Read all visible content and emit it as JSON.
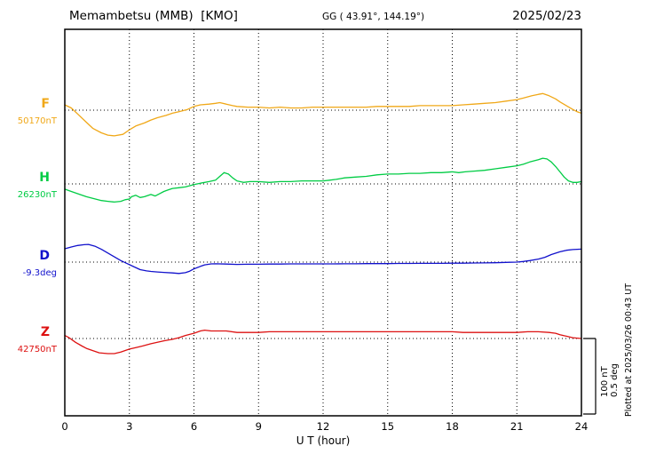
{
  "header": {
    "station": "Memambetsu (MMB)  [KMO]",
    "coords": "GG ( 43.91°, 144.19°)",
    "date": "2025/02/23"
  },
  "axis": {
    "xlabel": "U T (hour)",
    "ticks": [
      0,
      3,
      6,
      9,
      12,
      15,
      18,
      21,
      24
    ],
    "xmin": 0,
    "xmax": 24
  },
  "scale": {
    "line1": "100 nT",
    "line2": "0.5 deg",
    "plotted_at": "Plotted at 2025/03/26 00:43 UT"
  },
  "chart_data": {
    "type": "line",
    "title": "Memambetsu (MMB) [KMO] magnetogram 2025/02/23",
    "xlabel": "U T (hour)",
    "x_range": [
      0,
      24
    ],
    "grid": "dotted vertical every 3 hours; dotted horizontal at each component baseline",
    "scale_per_division": {
      "nT": 100,
      "deg": 0.5
    },
    "series": [
      {
        "name": "F",
        "unit": "nT",
        "baseline_value": 50170,
        "baseline_label": "50170nT",
        "color": "#f0a818",
        "points": [
          [
            0,
            7
          ],
          [
            0.3,
            3
          ],
          [
            0.6,
            -5
          ],
          [
            1,
            -16
          ],
          [
            1.3,
            -24
          ],
          [
            1.7,
            -30
          ],
          [
            2,
            -33
          ],
          [
            2.3,
            -34
          ],
          [
            2.7,
            -32
          ],
          [
            3,
            -26
          ],
          [
            3.3,
            -21
          ],
          [
            3.7,
            -17
          ],
          [
            4,
            -13
          ],
          [
            4.3,
            -10
          ],
          [
            4.7,
            -7
          ],
          [
            5,
            -4
          ],
          [
            5.3,
            -2
          ],
          [
            5.7,
            1
          ],
          [
            6,
            5
          ],
          [
            6.3,
            7
          ],
          [
            6.7,
            8
          ],
          [
            7,
            9
          ],
          [
            7.2,
            10
          ],
          [
            7.5,
            8
          ],
          [
            7.8,
            6
          ],
          [
            8,
            5
          ],
          [
            8.5,
            4
          ],
          [
            9,
            4
          ],
          [
            9.5,
            3
          ],
          [
            10,
            4
          ],
          [
            10.5,
            3
          ],
          [
            11,
            3
          ],
          [
            11.5,
            4
          ],
          [
            12,
            4
          ],
          [
            12.5,
            4
          ],
          [
            13,
            4
          ],
          [
            13.5,
            4
          ],
          [
            14,
            4
          ],
          [
            14.5,
            5
          ],
          [
            15,
            5
          ],
          [
            15.5,
            5
          ],
          [
            16,
            5
          ],
          [
            16.5,
            6
          ],
          [
            17,
            6
          ],
          [
            17.5,
            6
          ],
          [
            18,
            6
          ],
          [
            18.5,
            7
          ],
          [
            19,
            8
          ],
          [
            19.5,
            9
          ],
          [
            20,
            10
          ],
          [
            20.5,
            12
          ],
          [
            21,
            14
          ],
          [
            21.3,
            16
          ],
          [
            21.7,
            19
          ],
          [
            22,
            21
          ],
          [
            22.2,
            22
          ],
          [
            22.5,
            19
          ],
          [
            22.8,
            15
          ],
          [
            23,
            11
          ],
          [
            23.3,
            6
          ],
          [
            23.6,
            1
          ],
          [
            23.8,
            -2
          ],
          [
            24,
            -4
          ]
        ]
      },
      {
        "name": "H",
        "unit": "nT",
        "baseline_value": 26230,
        "baseline_label": "26230nT",
        "color": "#00cc44",
        "points": [
          [
            0,
            -7
          ],
          [
            0.3,
            -10
          ],
          [
            0.7,
            -14
          ],
          [
            1,
            -17
          ],
          [
            1.3,
            -19
          ],
          [
            1.7,
            -22
          ],
          [
            2,
            -23
          ],
          [
            2.3,
            -24
          ],
          [
            2.6,
            -23
          ],
          [
            2.8,
            -21
          ],
          [
            3,
            -20
          ],
          [
            3.1,
            -17
          ],
          [
            3.3,
            -15
          ],
          [
            3.5,
            -18
          ],
          [
            3.7,
            -17
          ],
          [
            4,
            -14
          ],
          [
            4.2,
            -16
          ],
          [
            4.4,
            -13
          ],
          [
            4.6,
            -10
          ],
          [
            4.8,
            -8
          ],
          [
            5,
            -6
          ],
          [
            5.3,
            -5
          ],
          [
            5.6,
            -4
          ],
          [
            6,
            -1
          ],
          [
            6.3,
            1
          ],
          [
            6.7,
            3
          ],
          [
            7,
            5
          ],
          [
            7.2,
            10
          ],
          [
            7.4,
            15
          ],
          [
            7.6,
            13
          ],
          [
            7.8,
            8
          ],
          [
            8,
            4
          ],
          [
            8.3,
            2
          ],
          [
            8.6,
            3
          ],
          [
            9,
            3
          ],
          [
            9.5,
            2
          ],
          [
            10,
            3
          ],
          [
            10.5,
            3
          ],
          [
            11,
            4
          ],
          [
            11.5,
            4
          ],
          [
            12,
            4
          ],
          [
            12.3,
            5
          ],
          [
            12.6,
            6
          ],
          [
            13,
            8
          ],
          [
            13.5,
            9
          ],
          [
            14,
            10
          ],
          [
            14.5,
            12
          ],
          [
            15,
            13
          ],
          [
            15.5,
            13
          ],
          [
            16,
            14
          ],
          [
            16.5,
            14
          ],
          [
            17,
            15
          ],
          [
            17.5,
            15
          ],
          [
            18,
            16
          ],
          [
            18.3,
            15
          ],
          [
            18.6,
            16
          ],
          [
            19,
            17
          ],
          [
            19.5,
            18
          ],
          [
            20,
            20
          ],
          [
            20.5,
            22
          ],
          [
            21,
            24
          ],
          [
            21.3,
            26
          ],
          [
            21.6,
            29
          ],
          [
            22,
            32
          ],
          [
            22.2,
            34
          ],
          [
            22.4,
            33
          ],
          [
            22.6,
            29
          ],
          [
            22.8,
            23
          ],
          [
            23,
            16
          ],
          [
            23.2,
            9
          ],
          [
            23.4,
            4
          ],
          [
            23.6,
            2
          ],
          [
            23.8,
            2
          ],
          [
            24,
            3
          ]
        ]
      },
      {
        "name": "D",
        "unit": "deg",
        "baseline_value": -9.3,
        "baseline_label": "-9.3deg",
        "color": "#1111cc",
        "points": [
          [
            0,
            0.088
          ],
          [
            0.3,
            0.1
          ],
          [
            0.6,
            0.11
          ],
          [
            0.9,
            0.115
          ],
          [
            1.1,
            0.117
          ],
          [
            1.4,
            0.105
          ],
          [
            1.7,
            0.085
          ],
          [
            2,
            0.06
          ],
          [
            2.3,
            0.035
          ],
          [
            2.6,
            0.01
          ],
          [
            2.9,
            -0.01
          ],
          [
            3.2,
            -0.03
          ],
          [
            3.5,
            -0.05
          ],
          [
            3.8,
            -0.058
          ],
          [
            4,
            -0.062
          ],
          [
            4.3,
            -0.065
          ],
          [
            4.6,
            -0.068
          ],
          [
            5,
            -0.072
          ],
          [
            5.3,
            -0.075
          ],
          [
            5.6,
            -0.07
          ],
          [
            5.8,
            -0.06
          ],
          [
            6,
            -0.045
          ],
          [
            6.3,
            -0.028
          ],
          [
            6.5,
            -0.018
          ],
          [
            6.8,
            -0.012
          ],
          [
            7,
            -0.011
          ],
          [
            7.5,
            -0.013
          ],
          [
            8,
            -0.015
          ],
          [
            8.5,
            -0.014
          ],
          [
            9,
            -0.014
          ],
          [
            9.5,
            -0.013
          ],
          [
            10,
            -0.013
          ],
          [
            10.5,
            -0.012
          ],
          [
            11,
            -0.012
          ],
          [
            11.5,
            -0.012
          ],
          [
            12,
            -0.012
          ],
          [
            12.5,
            -0.012
          ],
          [
            13,
            -0.011
          ],
          [
            13.5,
            -0.011
          ],
          [
            14,
            -0.01
          ],
          [
            14.5,
            -0.01
          ],
          [
            15,
            -0.01
          ],
          [
            15.5,
            -0.009
          ],
          [
            16,
            -0.009
          ],
          [
            16.5,
            -0.008
          ],
          [
            17,
            -0.008
          ],
          [
            17.5,
            -0.008
          ],
          [
            18,
            -0.007
          ],
          [
            18.5,
            -0.007
          ],
          [
            19,
            -0.006
          ],
          [
            19.5,
            -0.005
          ],
          [
            20,
            -0.004
          ],
          [
            20.5,
            -0.002
          ],
          [
            21,
            0
          ],
          [
            21.3,
            0.004
          ],
          [
            21.6,
            0.01
          ],
          [
            22,
            0.02
          ],
          [
            22.3,
            0.032
          ],
          [
            22.6,
            0.05
          ],
          [
            23,
            0.068
          ],
          [
            23.3,
            0.078
          ],
          [
            23.6,
            0.083
          ],
          [
            24,
            0.086
          ]
        ]
      },
      {
        "name": "Z",
        "unit": "nT",
        "baseline_value": 42750,
        "baseline_label": "42750nT",
        "color": "#dd1111",
        "points": [
          [
            0,
            4
          ],
          [
            0.2,
            1
          ],
          [
            0.5,
            -5
          ],
          [
            0.8,
            -10
          ],
          [
            1,
            -13
          ],
          [
            1.3,
            -16
          ],
          [
            1.6,
            -19
          ],
          [
            2,
            -20
          ],
          [
            2.3,
            -20
          ],
          [
            2.6,
            -18
          ],
          [
            3,
            -14
          ],
          [
            3.3,
            -12
          ],
          [
            3.6,
            -10
          ],
          [
            4,
            -7
          ],
          [
            4.3,
            -5
          ],
          [
            4.6,
            -3
          ],
          [
            5,
            -1
          ],
          [
            5.3,
            1
          ],
          [
            5.6,
            4
          ],
          [
            6,
            7
          ],
          [
            6.3,
            10
          ],
          [
            6.5,
            11
          ],
          [
            6.8,
            10
          ],
          [
            7,
            10
          ],
          [
            7.5,
            10
          ],
          [
            8,
            8
          ],
          [
            8.5,
            8
          ],
          [
            9,
            8
          ],
          [
            9.5,
            9
          ],
          [
            10,
            9
          ],
          [
            10.5,
            9
          ],
          [
            11,
            9
          ],
          [
            11.5,
            9
          ],
          [
            12,
            9
          ],
          [
            12.5,
            9
          ],
          [
            13,
            9
          ],
          [
            13.5,
            9
          ],
          [
            14,
            9
          ],
          [
            14.5,
            9
          ],
          [
            15,
            9
          ],
          [
            15.5,
            9
          ],
          [
            16,
            9
          ],
          [
            16.5,
            9
          ],
          [
            17,
            9
          ],
          [
            17.5,
            9
          ],
          [
            18,
            9
          ],
          [
            18.5,
            8
          ],
          [
            19,
            8
          ],
          [
            19.5,
            8
          ],
          [
            20,
            8
          ],
          [
            20.5,
            8
          ],
          [
            21,
            8
          ],
          [
            21.5,
            9
          ],
          [
            22,
            9
          ],
          [
            22.5,
            8
          ],
          [
            22.8,
            7
          ],
          [
            23,
            5
          ],
          [
            23.3,
            3
          ],
          [
            23.6,
            1
          ],
          [
            24,
            0
          ]
        ]
      }
    ]
  }
}
